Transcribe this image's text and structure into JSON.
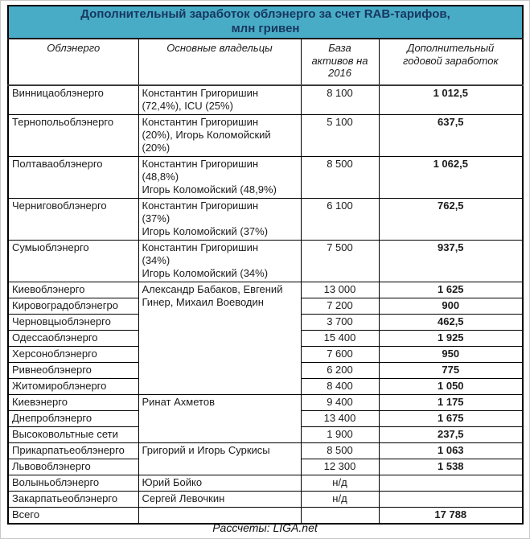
{
  "colors": {
    "title_background": "#49ACC7",
    "title_text": "#17375E",
    "table_border": "#000000",
    "body_text": "#1b1b1b"
  },
  "chart_data": {
    "type": "table",
    "title": "Дополнительный заработок облэнерго за счет RAB-тарифов, млн гривен",
    "title_lines": [
      "Дополнительный заработок облэнерго за счет RAB-тарифов,",
      "млн гривен"
    ],
    "units": "млн гривен",
    "columns": [
      "Облэнерго",
      "Основные владельцы",
      "База\nактивов на\n2016",
      "Дополнительный\nгодовой заработок"
    ],
    "groups": [
      {
        "owner": "Константин Григоришин\n(72,4%), ICU (25%)",
        "rows": [
          {
            "name": "Винницаоблэнерго",
            "assets": "8 100",
            "earnings": "1 012,5"
          }
        ]
      },
      {
        "owner": "Константин Григоришин\n(20%), Игорь Коломойский\n(20%)",
        "rows": [
          {
            "name": "Тернопольоблэнерго",
            "assets": "5 100",
            "earnings": "637,5"
          }
        ]
      },
      {
        "owner": "Константин Григоришин\n(48,8%)\nИгорь Коломойский (48,9%)",
        "rows": [
          {
            "name": "Полтаваоблэнерго",
            "assets": "8 500",
            "earnings": "1 062,5"
          }
        ]
      },
      {
        "owner": "Константин Григоришин\n(37%)\nИгорь Коломойский (37%)",
        "rows": [
          {
            "name": "Черниговоблэнерго",
            "assets": "6 100",
            "earnings": "762,5"
          }
        ]
      },
      {
        "owner": "Константин Григоришин\n(34%)\nИгорь Коломойский (34%)",
        "rows": [
          {
            "name": "Сумыоблэнерго",
            "assets": "7 500",
            "earnings": "937,5"
          }
        ]
      },
      {
        "owner": "Александр Бабаков, Евгений\nГинер, Михаил Воеводин",
        "rows": [
          {
            "name": "Киевоблэнерго",
            "assets": "13 000",
            "earnings": "1 625"
          },
          {
            "name": "Кировоградоблэнегро",
            "assets": "7 200",
            "earnings": "900"
          },
          {
            "name": "Черновцыоблэнерго",
            "assets": "3 700",
            "earnings": "462,5"
          },
          {
            "name": "Одессаоблэнерго",
            "assets": "15 400",
            "earnings": "1 925"
          },
          {
            "name": "Херсоноблэнерго",
            "assets": "7 600",
            "earnings": "950"
          },
          {
            "name": "Ривнеоблэнерго",
            "assets": "6 200",
            "earnings": "775"
          },
          {
            "name": "Житомироблэнерго",
            "assets": "8 400",
            "earnings": "1 050"
          }
        ]
      },
      {
        "owner": "Ринат Ахметов",
        "rows": [
          {
            "name": "Киевэнерго",
            "assets": "9 400",
            "earnings": "1 175"
          },
          {
            "name": "Днепроблэнерго",
            "assets": "13 400",
            "earnings": "1 675"
          },
          {
            "name": "Высоковольтные сети",
            "assets": "1 900",
            "earnings": "237,5"
          }
        ]
      },
      {
        "owner": "Григорий и Игорь Суркисы",
        "rows": [
          {
            "name": "Прикарпатьеоблэнерго",
            "assets": "8 500",
            "earnings": "1 063"
          },
          {
            "name": "Львовоблэнерго",
            "assets": "12 300",
            "earnings": "1 538"
          }
        ]
      },
      {
        "owner": "Юрий Бойко",
        "rows": [
          {
            "name": "Волыньоблэнерго",
            "assets": "н/д",
            "earnings": ""
          }
        ]
      },
      {
        "owner": "Сергей Левочкин",
        "rows": [
          {
            "name": "Закарпатьеоблэнерго",
            "assets": "н/д",
            "earnings": ""
          }
        ]
      }
    ],
    "total": {
      "label": "Всего",
      "owner": "",
      "assets": "",
      "earnings": "17 788"
    },
    "source": "Рассчеты: LIGA.net"
  }
}
